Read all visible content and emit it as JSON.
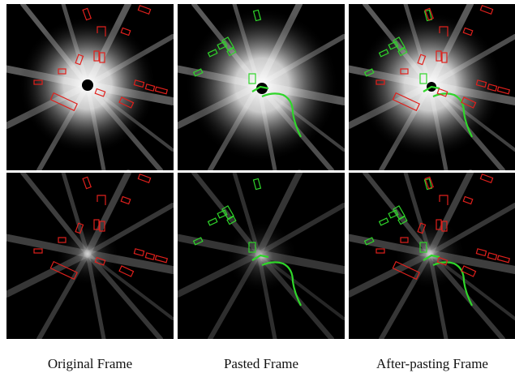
{
  "captions": [
    "Original Frame",
    "Pasted Frame",
    "After-pasting Frame"
  ]
}
